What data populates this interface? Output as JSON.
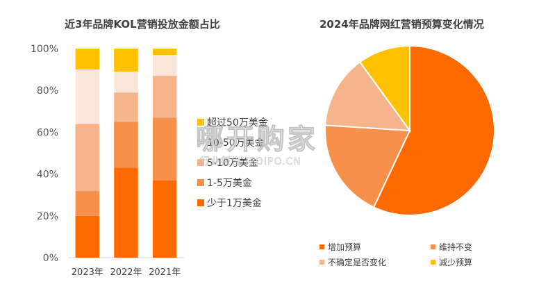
{
  "chart_data": [
    {
      "type": "bar",
      "stacked": true,
      "title": "近3年品牌KOL营销投放金额占比",
      "categories": [
        "2023年",
        "2022年",
        "2021年"
      ],
      "ylim": [
        0,
        100
      ],
      "yticks": [
        "0%",
        "20%",
        "40%",
        "60%",
        "80%",
        "100%"
      ],
      "series": [
        {
          "name": "少于1万美金",
          "color": "#FF6A00",
          "values": [
            20,
            43,
            37
          ]
        },
        {
          "name": "1-5万美金",
          "color": "#F7904A",
          "values": [
            12,
            22,
            30
          ]
        },
        {
          "name": "5-10万美金",
          "color": "#F6B48C",
          "values": [
            32,
            14,
            20
          ]
        },
        {
          "name": "10-50万美金",
          "color": "#FBE5DA",
          "values": [
            26,
            10,
            10
          ]
        },
        {
          "name": "超过50万美金",
          "color": "#FFC000",
          "values": [
            10,
            11,
            3
          ]
        }
      ],
      "legend_position": "right",
      "legend_order": [
        "超过50万美金",
        "10-50万美金",
        "5-10万美金",
        "1-5万美金",
        "少于1万美金"
      ]
    },
    {
      "type": "pie",
      "title": "2024年品牌网红营销预算变化情况",
      "slices": [
        {
          "label": "增加预算",
          "color": "#FF6A00",
          "value": 57
        },
        {
          "label": "维持不变",
          "color": "#F7904A",
          "value": 19
        },
        {
          "label": "不确定是否变化",
          "color": "#F6B48C",
          "value": 14
        },
        {
          "label": "减少预算",
          "color": "#FFC000",
          "value": 10
        }
      ],
      "legend_position": "bottom"
    }
  ],
  "watermark": {
    "main": "哪开购家",
    "sub": "行业报告 IPOIPO.CN"
  }
}
